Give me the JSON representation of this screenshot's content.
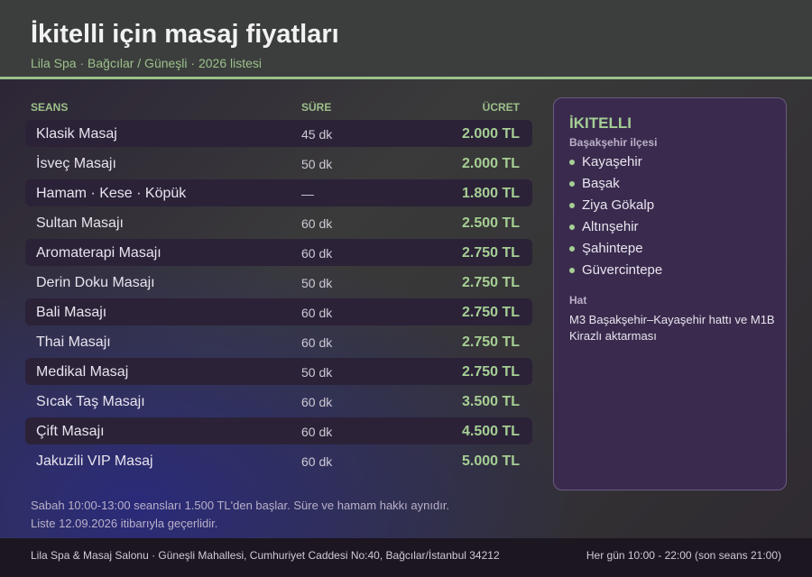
{
  "header": {
    "title": "İkitelli için masaj fiyatları",
    "subtitle": "Lila Spa · Bağcılar / Güneşli · 2026 listesi"
  },
  "table": {
    "columns": [
      "SEANS",
      "SÜRE",
      "ÜCRET"
    ],
    "rows": [
      [
        "Klasik Masaj",
        "45 dk",
        "2.000 TL"
      ],
      [
        "İsveç Masajı",
        "50 dk",
        "2.000 TL"
      ],
      [
        "Hamam · Kese · Köpük",
        "—",
        "1.800 TL"
      ],
      [
        "Sultan Masajı",
        "60 dk",
        "2.500 TL"
      ],
      [
        "Aromaterapi Masajı",
        "60 dk",
        "2.750 TL"
      ],
      [
        "Derin Doku Masajı",
        "50 dk",
        "2.750 TL"
      ],
      [
        "Bali Masajı",
        "60 dk",
        "2.750 TL"
      ],
      [
        "Thai Masajı",
        "60 dk",
        "2.750 TL"
      ],
      [
        "Medikal Masaj",
        "50 dk",
        "2.750 TL"
      ],
      [
        "Sıcak Taş Masajı",
        "60 dk",
        "3.500 TL"
      ],
      [
        "Çift Masajı",
        "60 dk",
        "4.500 TL"
      ],
      [
        "Jakuzili VIP Masaj",
        "60 dk",
        "5.000 TL"
      ]
    ]
  },
  "sidebar": {
    "title": "İKITELLI",
    "subtitle": "Başakşehir ilçesi",
    "items": [
      "Kayaşehir",
      "Başak",
      "Ziya Gökalp",
      "Altınşehir",
      "Şahintepe",
      "Güvercintepe"
    ],
    "line_label": "Hat",
    "line_text": "M3 Başakşehir–Kayaşehir hattı ve M1B Kirazlı aktarması"
  },
  "notes": [
    "Sabah 10:00-13:00 seansları 1.500 TL'den başlar. Süre ve hamam hakkı aynıdır.",
    "Liste 12.09.2026 itibarıyla geçerlidir."
  ],
  "footer": {
    "address": "Lila Spa & Masaj Salonu · Güneşli Mahallesi, Cumhuriyet Caddesi No:40, Bağcılar/İstanbul 34212",
    "hours": "Her gün 10:00 - 22:00 (son seans 21:00)"
  }
}
